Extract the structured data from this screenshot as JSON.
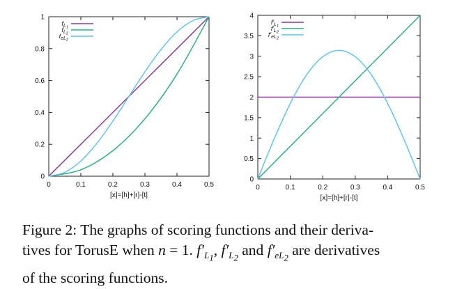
{
  "chart_data": [
    {
      "type": "line",
      "xlabel": "[x]=[h]+[r]-[t]",
      "xlim": [
        0,
        0.5
      ],
      "ylim": [
        0,
        1
      ],
      "xticks": [
        "0",
        "0.1",
        "0.2",
        "0.3",
        "0.4",
        "0.5"
      ],
      "yticks": [
        "0",
        "0.2",
        "0.4",
        "0.6",
        "0.8",
        "1"
      ],
      "legend_position": "top-left",
      "series": [
        {
          "name": "f_L1",
          "color": "#8a3d96",
          "x": [
            0,
            0.1,
            0.2,
            0.3,
            0.4,
            0.5
          ],
          "y": [
            0,
            0.2,
            0.4,
            0.6,
            0.8,
            1.0
          ]
        },
        {
          "name": "f_L2",
          "color": "#2bb07b",
          "x": [
            0,
            0.1,
            0.2,
            0.3,
            0.4,
            0.5
          ],
          "y": [
            0,
            0.04,
            0.16,
            0.36,
            0.64,
            1.0
          ]
        },
        {
          "name": "f_eL2",
          "color": "#5ec4e8",
          "x": [
            0,
            0.05,
            0.1,
            0.15,
            0.2,
            0.25,
            0.3,
            0.35,
            0.4,
            0.45,
            0.5
          ],
          "y": [
            0,
            0.024,
            0.095,
            0.206,
            0.345,
            0.5,
            0.655,
            0.794,
            0.905,
            0.976,
            1.0
          ]
        }
      ]
    },
    {
      "type": "line",
      "xlabel": "[x]=[h]+[r]-[t]",
      "xlim": [
        0,
        0.5
      ],
      "ylim": [
        0,
        4
      ],
      "xticks": [
        "0",
        "0.1",
        "0.2",
        "0.3",
        "0.4",
        "0.5"
      ],
      "yticks": [
        "0",
        "0.5",
        "1",
        "1.5",
        "2",
        "2.5",
        "3",
        "3.5",
        "4"
      ],
      "legend_position": "top-left",
      "series": [
        {
          "name": "f'_L1",
          "color": "#8a3d96",
          "x": [
            0,
            0.5
          ],
          "y": [
            2,
            2
          ]
        },
        {
          "name": "f'_L2",
          "color": "#2bb07b",
          "x": [
            0,
            0.5
          ],
          "y": [
            0,
            4
          ]
        },
        {
          "name": "f'_eL2",
          "color": "#5ec4e8",
          "x": [
            0,
            0.05,
            0.1,
            0.15,
            0.2,
            0.25,
            0.3,
            0.35,
            0.4,
            0.45,
            0.5
          ],
          "y": [
            0,
            0.971,
            1.847,
            2.542,
            2.988,
            3.142,
            2.988,
            2.542,
            1.847,
            0.971,
            0
          ]
        }
      ]
    }
  ],
  "legend_labels": {
    "left": [
      {
        "base": "f",
        "sub": "L",
        "subsub": "1"
      },
      {
        "base": "f",
        "sub": "L",
        "subsub": "2"
      },
      {
        "base": "f",
        "sub": "eL",
        "subsub": "2"
      }
    ],
    "right": [
      {
        "base": "f'",
        "sub": "L",
        "subsub": "1"
      },
      {
        "base": "f'",
        "sub": "L",
        "subsub": "2"
      },
      {
        "base": "f'",
        "sub": "eL",
        "subsub": "2"
      }
    ]
  },
  "caption": {
    "prefix": "Figure 2: The graphs of scoring functions and their deriva-",
    "line2a": "tives for TorusE when ",
    "n": "n",
    "eq": " = 1. ",
    "and": " and ",
    "end": " are derivatives",
    "line3": "of the scoring functions."
  }
}
